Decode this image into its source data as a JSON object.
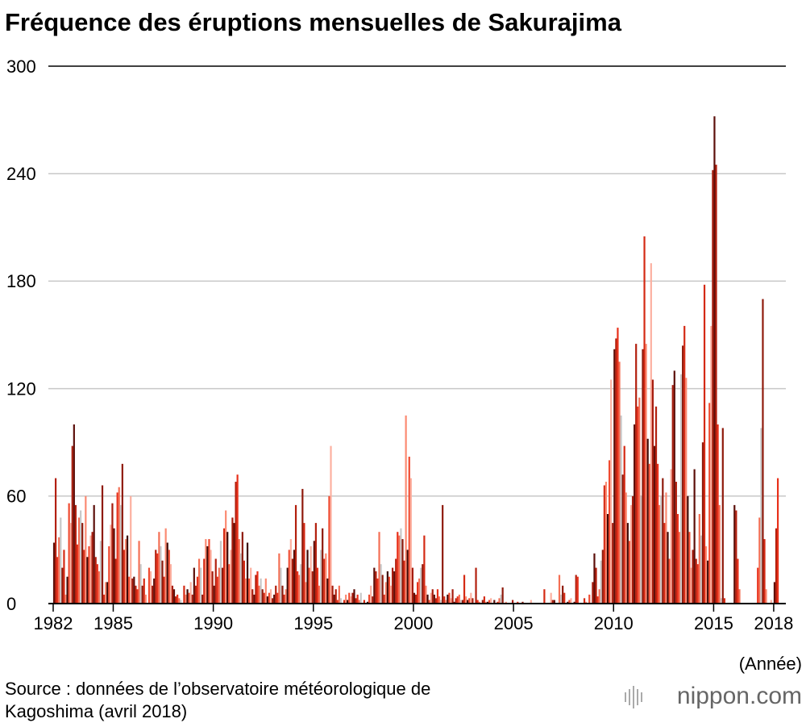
{
  "chart_data": {
    "type": "bar",
    "title": "Fréquence des éruptions mensuelles de Sakurajima",
    "x_label": "(Année)",
    "source": [
      "Source : données de l’observatoire météorologique de",
      "Kagoshima (avril 2018)"
    ],
    "logo": "nippon.com",
    "x": [
      1982,
      1983,
      1984,
      1985,
      1986,
      1987,
      1988,
      1989,
      1990,
      1991,
      1992,
      1993,
      1994,
      1995,
      1996,
      1997,
      1998,
      1999,
      2000,
      2001,
      2002,
      2003,
      2004,
      2005,
      2006,
      2007,
      2008,
      2009,
      2010,
      2011,
      2012,
      2013,
      2014,
      2015,
      2016,
      2017,
      2018
    ],
    "xlim": [
      1981.9,
      2018.35
    ],
    "xticks": [
      1982,
      1985,
      1990,
      1995,
      2000,
      2005,
      2010,
      2015,
      2018
    ],
    "ylim": [
      0,
      300
    ],
    "yticks": [
      0,
      60,
      120,
      180,
      240,
      300
    ],
    "grid": true,
    "series": [
      {
        "color": "#5c0f0a",
        "values": [
          34,
          100,
          55,
          42,
          15,
          14,
          8,
          20,
          10,
          45,
          5,
          5,
          30,
          35,
          5,
          8,
          20,
          18,
          6,
          5,
          1,
          0,
          2,
          0,
          0,
          2,
          1,
          28,
          142,
          100,
          88,
          130,
          75,
          272,
          55,
          0,
          12
        ]
      },
      {
        "color": "#b3200e",
        "values": [
          70,
          55,
          26,
          25,
          10,
          30,
          4,
          10,
          25,
          68,
          16,
          10,
          55,
          45,
          8,
          3,
          18,
          25,
          5,
          3,
          3,
          20,
          0,
          0,
          0,
          0,
          16,
          20,
          148,
          145,
          110,
          68,
          25,
          245,
          52,
          0,
          42
        ]
      },
      {
        "color": "#e8301a",
        "values": [
          26,
          33,
          22,
          62,
          8,
          28,
          5,
          15,
          15,
          72,
          18,
          6,
          18,
          20,
          2,
          5,
          14,
          40,
          12,
          8,
          4,
          2,
          1,
          1,
          0,
          0,
          15,
          4,
          154,
          110,
          78,
          50,
          22,
          100,
          25,
          20,
          70
        ]
      },
      {
        "color": "#f46f55",
        "values": [
          37,
          48,
          18,
          65,
          35,
          40,
          3,
          25,
          20,
          36,
          10,
          28,
          16,
          10,
          10,
          2,
          40,
          38,
          14,
          4,
          5,
          1,
          3,
          0,
          0,
          16,
          0,
          8,
          135,
          115,
          55,
          40,
          50,
          55,
          8,
          48,
          null
        ]
      },
      {
        "color": "#c8c8c8",
        "values": [
          48,
          52,
          35,
          55,
          22,
          32,
          2,
          20,
          35,
          28,
          14,
          20,
          22,
          30,
          3,
          6,
          22,
          42,
          20,
          2,
          2,
          0,
          5,
          0,
          0,
          5,
          0,
          24,
          105,
          60,
          60,
          128,
          38,
          3,
          0,
          98,
          null
        ]
      },
      {
        "color": "#8f1a0c",
        "values": [
          20,
          45,
          66,
          78,
          10,
          24,
          0,
          5,
          20,
          40,
          8,
          10,
          64,
          42,
          0,
          0,
          16,
          36,
          22,
          55,
          2,
          2,
          9,
          1,
          0,
          10,
          0,
          30,
          72,
          142,
          70,
          144,
          90,
          98,
          0,
          170,
          null
        ]
      },
      {
        "color": "#d42a14",
        "values": [
          30,
          30,
          5,
          30,
          14,
          15,
          10,
          25,
          42,
          24,
          6,
          5,
          45,
          25,
          2,
          2,
          5,
          24,
          38,
          4,
          16,
          4,
          0,
          0,
          8,
          6,
          3,
          66,
          88,
          205,
          45,
          155,
          178,
          3,
          0,
          36,
          null
        ]
      },
      {
        "color": "#fb8a72",
        "values": [
          5,
          60,
          12,
          36,
          5,
          42,
          5,
          36,
          52,
          14,
          14,
          8,
          12,
          28,
          5,
          0,
          12,
          105,
          10,
          2,
          4,
          1,
          1,
          0,
          0,
          0,
          1,
          68,
          62,
          145,
          62,
          126,
          32,
          0,
          0,
          8,
          null
        ]
      },
      {
        "color": "#3d0a06",
        "values": [
          15,
          26,
          12,
          38,
          0,
          34,
          8,
          32,
          40,
          34,
          4,
          20,
          30,
          14,
          2,
          1,
          18,
          30,
          5,
          5,
          2,
          1,
          0,
          0,
          0,
          1,
          0,
          50,
          45,
          92,
          40,
          60,
          24,
          0,
          0,
          0,
          null
        ]
      },
      {
        "color": "#ef4a30",
        "values": [
          56,
          32,
          32,
          15,
          20,
          30,
          6,
          36,
          22,
          14,
          6,
          30,
          20,
          60,
          6,
          5,
          15,
          82,
          2,
          6,
          3,
          2,
          0,
          0,
          0,
          2,
          5,
          80,
          35,
          78,
          25,
          40,
          112,
          0,
          0,
          0,
          null
        ]
      },
      {
        "color": "#fcb0a0",
        "values": [
          45,
          38,
          44,
          60,
          18,
          22,
          12,
          30,
          30,
          20,
          8,
          36,
          32,
          88,
          4,
          10,
          10,
          70,
          6,
          3,
          6,
          3,
          0,
          2,
          6,
          3,
          0,
          125,
          55,
          190,
          75,
          20,
          155,
          0,
          0,
          2,
          null
        ]
      },
      {
        "color": "#a61c0d",
        "values": [
          88,
          40,
          56,
          14,
          10,
          10,
          5,
          18,
          48,
          8,
          3,
          25,
          18,
          10,
          6,
          4,
          20,
          20,
          8,
          8,
          3,
          0,
          2,
          0,
          2,
          0,
          12,
          45,
          60,
          125,
          122,
          30,
          242,
          0,
          0,
          0,
          null
        ]
      }
    ]
  }
}
